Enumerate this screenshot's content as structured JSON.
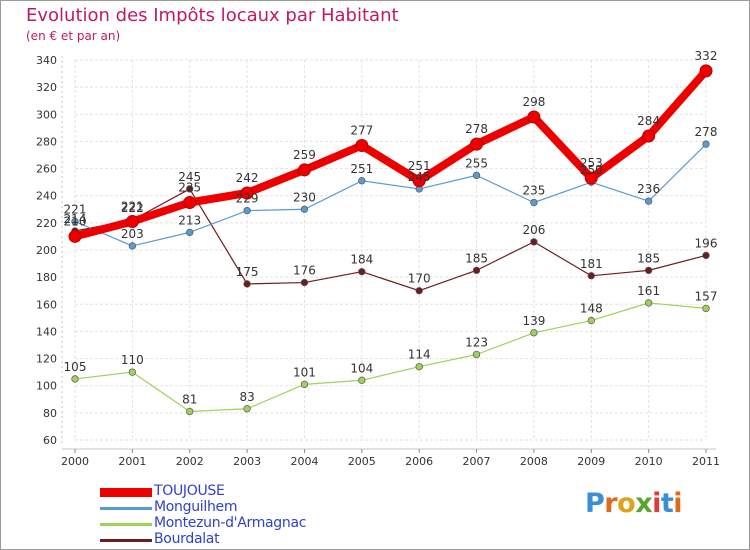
{
  "title": "Evolution des Impôts locaux par Habitant",
  "subtitle": "(en € et par an)",
  "logo": {
    "text": "Proxiti",
    "letters": [
      "P",
      "r",
      "o",
      "x",
      "i",
      "t",
      "i"
    ],
    "colors": [
      "#3b8ed8",
      "#e06a1b",
      "#e0a21b",
      "#5aa62c",
      "#e03b3b",
      "#3b8ed8",
      "#e06a1b"
    ]
  },
  "chart_data": {
    "type": "line",
    "title": "Evolution des Impôts locaux par Habitant",
    "subtitle": "(en € et par an)",
    "xlabel": "",
    "ylabel": "",
    "ylim": [
      60,
      340
    ],
    "yticks": [
      60,
      80,
      100,
      120,
      140,
      160,
      180,
      200,
      220,
      240,
      260,
      280,
      300,
      320,
      340
    ],
    "grid": true,
    "legend_position": "bottom-left",
    "x": [
      "2000",
      "2001",
      "2002",
      "2003",
      "2004",
      "2005",
      "2006",
      "2007",
      "2008",
      "2009",
      "2010",
      "2011"
    ],
    "series": [
      {
        "name": "Bourdalat",
        "color": "#6e1c1c",
        "values": [
          214,
          222,
          245,
          175,
          176,
          184,
          170,
          185,
          206,
          181,
          185,
          196
        ]
      },
      {
        "name": "Montezun-d'Armagnac",
        "color": "#9cd35a",
        "values": [
          105,
          110,
          81,
          83,
          101,
          104,
          114,
          123,
          139,
          148,
          161,
          157
        ]
      },
      {
        "name": "Monguilhem",
        "color": "#5b9bd5",
        "values": [
          221,
          203,
          213,
          229,
          230,
          251,
          245,
          255,
          235,
          250,
          236,
          278
        ]
      },
      {
        "name": "TOUJOUSE",
        "color": "#ee0000",
        "values": [
          210,
          221,
          235,
          242,
          259,
          277,
          251,
          278,
          298,
          253,
          284,
          332
        ]
      }
    ],
    "data_labels": [
      {
        "series": "Bourdalat",
        "texts": [
          "214",
          "222",
          "245",
          "175",
          "176",
          "184",
          "170",
          "185",
          "206",
          "181",
          "185",
          "196"
        ]
      },
      {
        "series": "Montezun-d'Armagnac",
        "texts": [
          "105",
          "110",
          "81",
          "83",
          "101",
          "104",
          "114",
          "123",
          "139",
          "148",
          "161",
          "157"
        ]
      },
      {
        "series": "Monguilhem",
        "texts": [
          "221",
          "203",
          "213",
          "229",
          "230",
          "251",
          "245",
          "255",
          "235",
          "250",
          "236",
          "278"
        ]
      },
      {
        "series": "TOUJOUSE",
        "texts": [
          "210",
          "221",
          "235",
          "242",
          "259",
          "277",
          "251",
          "278",
          "298",
          "253",
          "284",
          "332"
        ]
      }
    ]
  },
  "legend": [
    {
      "label": "TOUJOUSE",
      "color": "#ee0000",
      "thick": true
    },
    {
      "label": "Monguilhem",
      "color": "#5b9bd5",
      "thick": false
    },
    {
      "label": "Montezun-d'Armagnac",
      "color": "#9cd35a",
      "thick": false
    },
    {
      "label": "Bourdalat",
      "color": "#6e1c1c",
      "thick": false
    }
  ]
}
